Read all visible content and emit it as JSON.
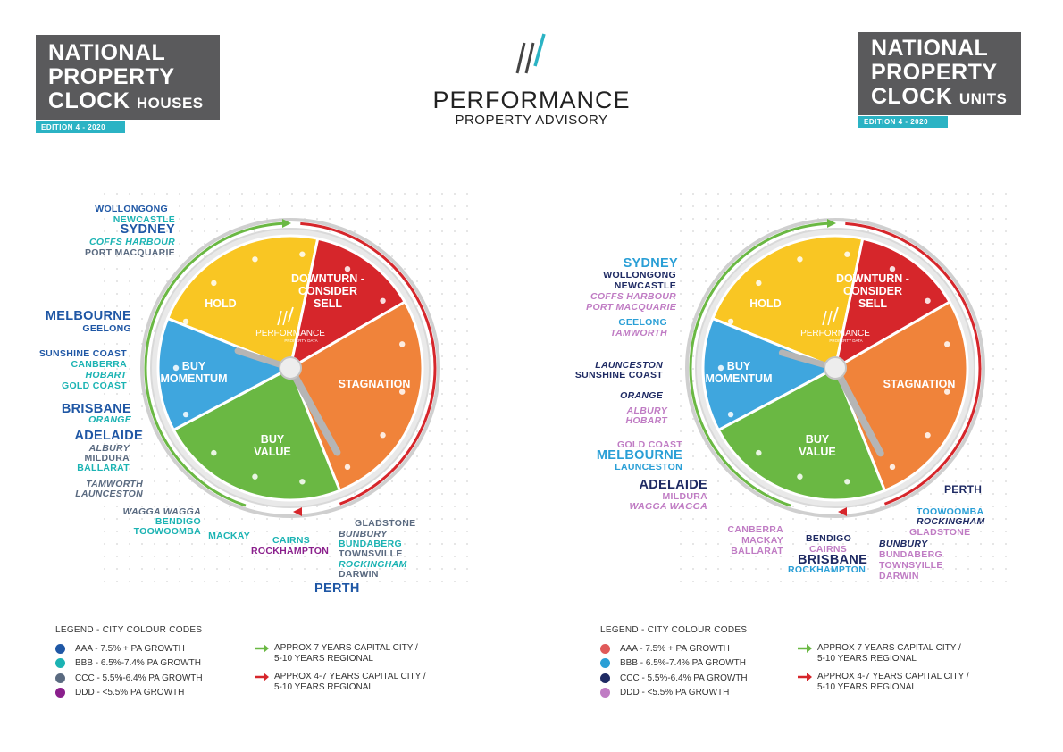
{
  "logo": {
    "name": "PERFORMANCE",
    "tagline": "PROPERTY ADVISORY",
    "inner_name": "PERFORMANCE",
    "inner_tagline": "PROPERTY DATA"
  },
  "colors": {
    "hold": "#f9c623",
    "downturn": "#d6262b",
    "stagnation": "#f0833a",
    "buy_value": "#6ab843",
    "buy_momentum": "#3fa6de",
    "arrow_green": "#6ab843",
    "arrow_red": "#d6262b",
    "title_bg": "#5a5a5c",
    "edition_bg": "#2bb3c4"
  },
  "houses": {
    "title_line1": "NATIONAL",
    "title_line2": "PROPERTY",
    "title_line3": "CLOCK",
    "title_sub": "HOUSES",
    "edition": "EDITION 4 - 2020",
    "segments": {
      "hold": "HOLD",
      "downturn_1": "DOWNTURN -",
      "downturn_2": "CONSIDER",
      "downturn_3": "SELL",
      "stagnation": "STAGNATION",
      "buy_value_1": "BUY",
      "buy_value_2": "VALUE",
      "buy_momentum_1": "BUY",
      "buy_momentum_2": "MOMENTUM"
    },
    "cities": {
      "wollongong": "WOLLONGONG",
      "newcastle": "NEWCASTLE",
      "sydney": "SYDNEY",
      "coffs_harbour": "COFFS HARBOUR",
      "port_macquarie": "PORT MACQUARIE",
      "melbourne": "MELBOURNE",
      "geelong": "GEELONG",
      "sunshine_coast": "SUNSHINE COAST",
      "canberra": "CANBERRA",
      "hobart": "HOBART",
      "gold_coast": "GOLD COAST",
      "brisbane": "BRISBANE",
      "orange": "ORANGE",
      "adelaide": "ADELAIDE",
      "albury": "ALBURY",
      "mildura": "MILDURA",
      "ballarat": "BALLARAT",
      "tamworth": "TAMWORTH",
      "launceston": "LAUNCESTON",
      "wagga_wagga": "WAGGA WAGGA",
      "bendigo": "BENDIGO",
      "toowoomba": "TOOWOOMBA",
      "mackay": "MACKAY",
      "cairns": "CAIRNS",
      "rockhampton": "ROCKHAMPTON",
      "gladstone": "GLADSTONE",
      "bunbury": "BUNBURY",
      "bundaberg": "BUNDABERG",
      "townsville": "TOWNSVILLE",
      "rockingham": "ROCKINGHAM",
      "darwin": "DARWIN",
      "perth": "PERTH"
    },
    "legend": {
      "title": "LEGEND - CITY COLOUR CODES",
      "aaa": "AAA - 7.5% + PA GROWTH",
      "bbb": "BBB - 6.5%-7.4% PA GROWTH",
      "ccc": "CCC - 5.5%-6.4% PA GROWTH",
      "ddd": "DDD - <5.5% PA GROWTH",
      "c_aaa": "#1f57a5",
      "c_bbb": "#1bb3b3",
      "c_ccc": "#5a6a80",
      "c_ddd": "#8a1f8c"
    },
    "arrows": {
      "green_1": "APPROX 7 YEARS CAPITAL CITY /",
      "green_2": "5-10 YEARS REGIONAL",
      "red_1": "APPROX 4-7 YEARS CAPITAL CITY /",
      "red_2": "5-10 YEARS REGIONAL"
    }
  },
  "units": {
    "title_line1": "NATIONAL",
    "title_line2": "PROPERTY",
    "title_line3": "CLOCK",
    "title_sub": "UNITS",
    "edition": "EDITION 4 - 2020",
    "segments": {
      "hold": "HOLD",
      "downturn_1": "DOWNTURN -",
      "downturn_2": "CONSIDER",
      "downturn_3": "SELL",
      "stagnation": "STAGNATION",
      "buy_value_1": "BUY",
      "buy_value_2": "VALUE",
      "buy_momentum_1": "BUY",
      "buy_momentum_2": "MOMENTUM"
    },
    "cities": {
      "sydney": "SYDNEY",
      "wollongong": "WOLLONGONG",
      "newcastle": "NEWCASTLE",
      "coffs_harbour": "COFFS HARBOUR",
      "port_macquarie": "PORT MACQUARIE",
      "geelong": "GEELONG",
      "tamworth": "TAMWORTH",
      "launceston_top": "LAUNCESTON",
      "sunshine_coast": "SUNSHINE COAST",
      "orange": "ORANGE",
      "albury": "ALBURY",
      "hobart": "HOBART",
      "gold_coast": "GOLD COAST",
      "melbourne": "MELBOURNE",
      "launceston": "LAUNCESTON",
      "adelaide": "ADELAIDE",
      "mildura": "MILDURA",
      "wagga_wagga": "WAGGA WAGGA",
      "canberra": "CANBERRA",
      "mackay": "MACKAY",
      "ballarat": "BALLARAT",
      "bendigo": "BENDIGO",
      "cairns": "CAIRNS",
      "brisbane": "BRISBANE",
      "rockhampton": "ROCKHAMPTON",
      "bunbury": "BUNBURY",
      "bundaberg": "BUNDABERG",
      "townsville": "TOWNSVILLE",
      "darwin": "DARWIN",
      "perth": "PERTH",
      "toowoomba": "TOOWOOMBA",
      "rockingham": "ROCKINGHAM",
      "gladstone": "GLADSTONE"
    },
    "legend": {
      "title": "LEGEND - CITY COLOUR CODES",
      "aaa": "AAA - 7.5% + PA GROWTH",
      "bbb": "BBB - 6.5%-7.4% PA GROWTH",
      "ccc": "CCC - 5.5%-6.4% PA GROWTH",
      "ddd": "DDD - <5.5% PA GROWTH",
      "c_aaa": "#e05a5a",
      "c_bbb": "#2a9fd6",
      "c_ccc": "#1e2a63",
      "c_ddd": "#c07cc4"
    },
    "arrows": {
      "green_1": "APPROX 7 YEARS CAPITAL CITY /",
      "green_2": "5-10 YEARS REGIONAL",
      "red_1": "APPROX 4-7 YEARS CAPITAL CITY /",
      "red_2": "5-10 YEARS REGIONAL"
    }
  }
}
